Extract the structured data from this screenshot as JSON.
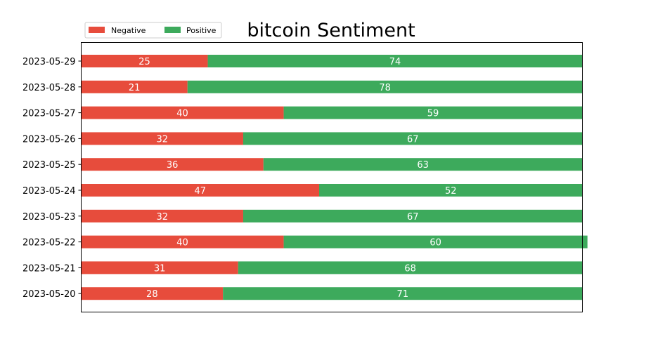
{
  "chart_data": {
    "type": "bar",
    "orientation": "horizontal",
    "stacked": true,
    "title": "bitcoin Sentiment",
    "xlabel": "",
    "ylabel": "",
    "xlim": [
      0,
      99
    ],
    "grid": false,
    "legend_position": "top-left",
    "categories": [
      "2023-05-29",
      "2023-05-28",
      "2023-05-27",
      "2023-05-26",
      "2023-05-25",
      "2023-05-24",
      "2023-05-23",
      "2023-05-22",
      "2023-05-21",
      "2023-05-20"
    ],
    "series": [
      {
        "name": "Negative",
        "color": "#e74c3c",
        "values": [
          25,
          21,
          40,
          32,
          36,
          47,
          32,
          40,
          31,
          28
        ]
      },
      {
        "name": "Positive",
        "color": "#3daa5c",
        "values": [
          74,
          78,
          59,
          67,
          63,
          52,
          67,
          60,
          68,
          71
        ]
      }
    ]
  }
}
